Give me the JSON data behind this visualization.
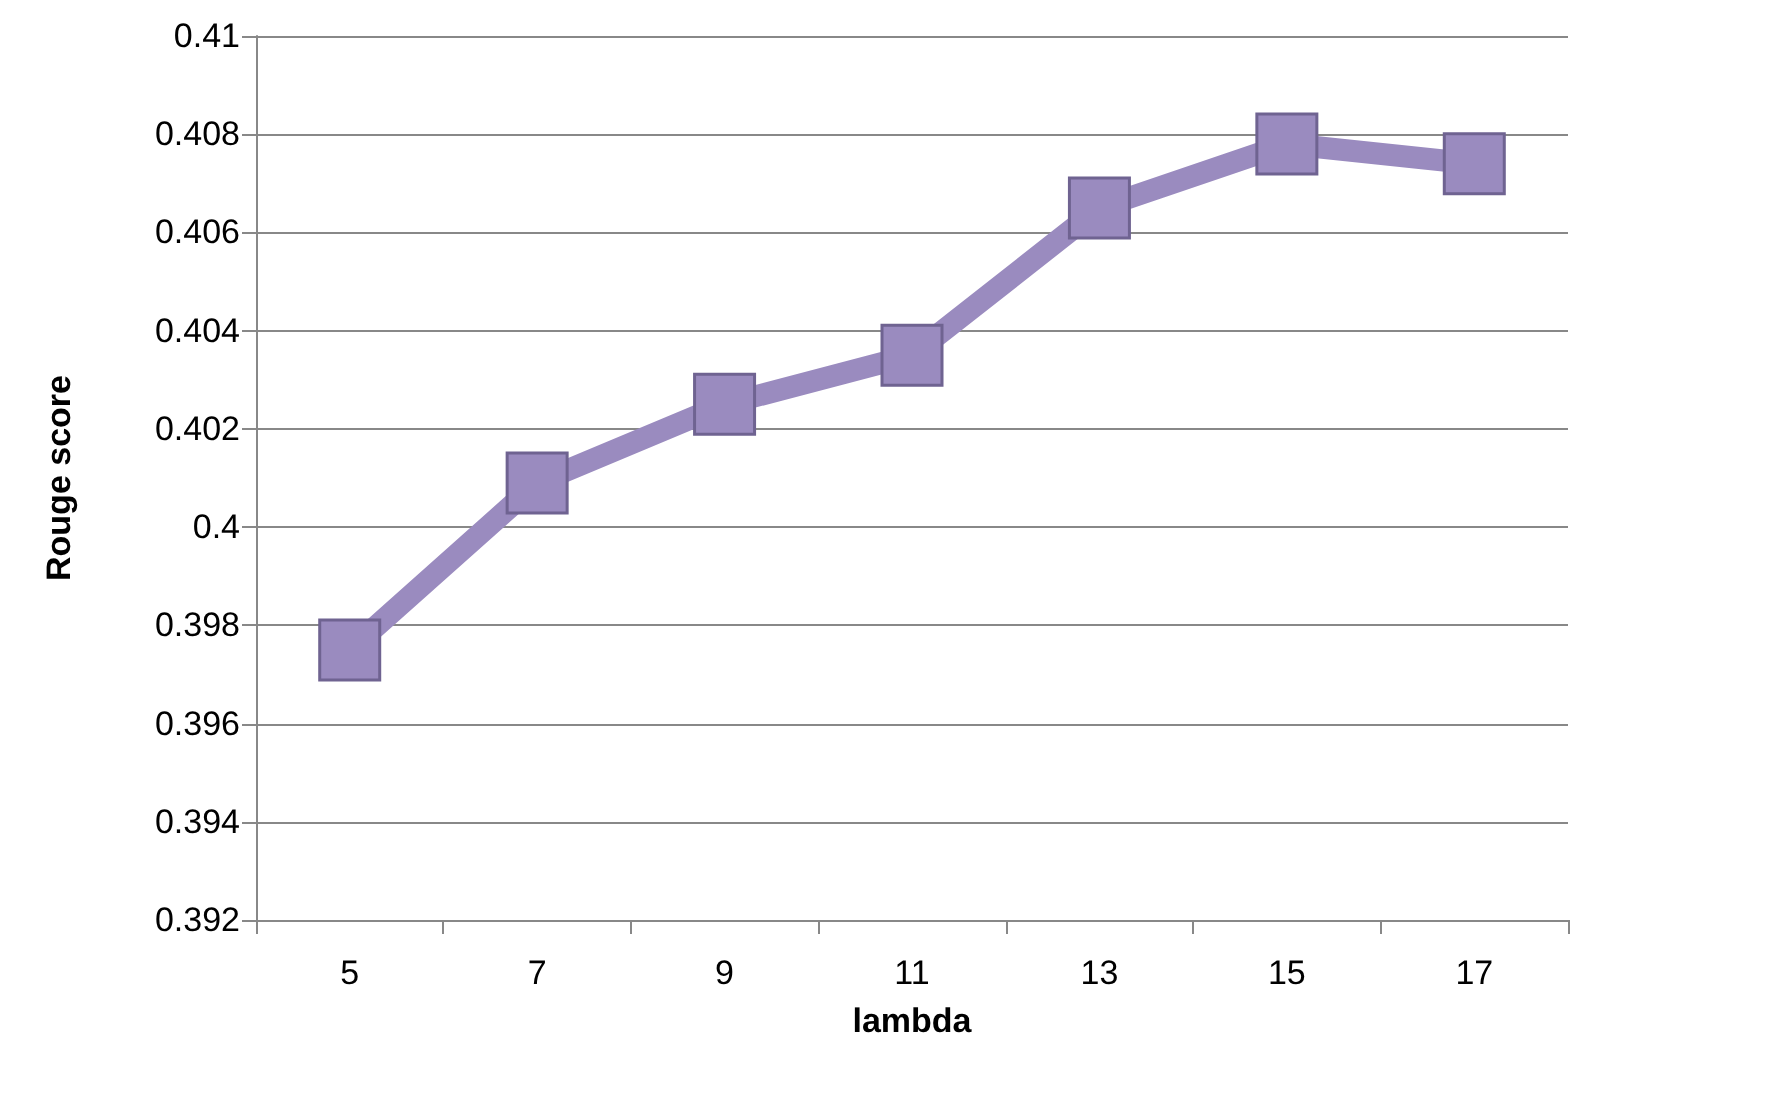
{
  "chart_data": {
    "type": "line",
    "xlabel": "lambda",
    "ylabel": "Rouge score",
    "categories": [
      "5",
      "7",
      "9",
      "11",
      "13",
      "15",
      "17"
    ],
    "series": [
      {
        "color": "#9a8bbf",
        "values": [
          0.3975,
          0.4009,
          0.4025,
          0.4035,
          0.4065,
          0.4078,
          0.4074
        ]
      }
    ],
    "ylim": [
      0.392,
      0.41
    ],
    "yticks": [
      0.392,
      0.394,
      0.396,
      0.398,
      0.4,
      0.402,
      0.404,
      0.406,
      0.408,
      0.41
    ],
    "grid": "y",
    "marker": "square",
    "line_style": "solid"
  }
}
